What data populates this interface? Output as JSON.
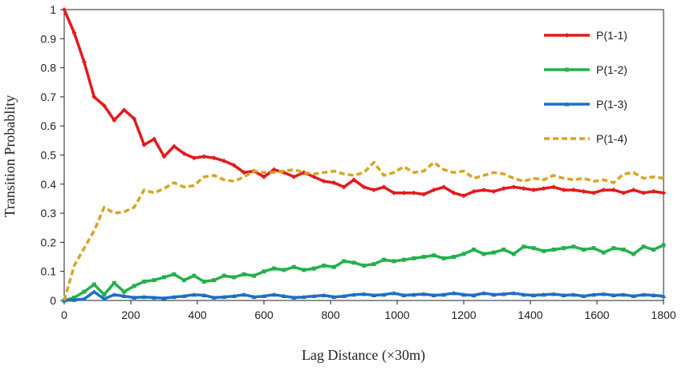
{
  "chart_data": {
    "type": "line",
    "title": "",
    "xlabel": "Lag Distance (×30m)",
    "ylabel": "Transition Probablity",
    "xlim": [
      0,
      1800
    ],
    "ylim": [
      0,
      1
    ],
    "x_ticks": [
      0,
      200,
      400,
      600,
      800,
      1000,
      1200,
      1400,
      1600,
      1800
    ],
    "y_ticks": [
      0,
      0.1,
      0.2,
      0.3,
      0.4,
      0.5,
      0.6,
      0.7,
      0.8,
      0.9,
      1
    ],
    "y_tick_labels": [
      "0",
      "0.1",
      "0.2",
      "0.3",
      "0.4",
      "0.5",
      "0.6",
      "0.7",
      "0.8",
      "0.9",
      "1"
    ],
    "grid": false,
    "legend_position": "top-right",
    "series": [
      {
        "name": "P(1-1)",
        "color": "#e31a1c",
        "style": "solid",
        "marker": "diamond",
        "x": [
          0,
          30,
          60,
          90,
          120,
          150,
          180,
          210,
          240,
          270,
          300,
          330,
          360,
          390,
          420,
          450,
          480,
          510,
          540,
          570,
          600,
          630,
          660,
          690,
          720,
          750,
          780,
          810,
          840,
          870,
          900,
          930,
          960,
          990,
          1020,
          1050,
          1080,
          1110,
          1140,
          1170,
          1200,
          1230,
          1260,
          1290,
          1320,
          1350,
          1380,
          1410,
          1440,
          1470,
          1500,
          1530,
          1560,
          1590,
          1620,
          1650,
          1680,
          1710,
          1740,
          1770,
          1800
        ],
        "y": [
          1.0,
          0.92,
          0.82,
          0.7,
          0.67,
          0.62,
          0.655,
          0.625,
          0.535,
          0.555,
          0.495,
          0.53,
          0.505,
          0.49,
          0.495,
          0.49,
          0.48,
          0.465,
          0.44,
          0.445,
          0.425,
          0.45,
          0.44,
          0.425,
          0.44,
          0.425,
          0.41,
          0.405,
          0.39,
          0.415,
          0.39,
          0.38,
          0.39,
          0.37,
          0.37,
          0.37,
          0.365,
          0.38,
          0.39,
          0.37,
          0.36,
          0.375,
          0.38,
          0.375,
          0.385,
          0.39,
          0.385,
          0.38,
          0.385,
          0.39,
          0.38,
          0.38,
          0.375,
          0.37,
          0.38,
          0.38,
          0.37,
          0.38,
          0.37,
          0.375,
          0.37
        ]
      },
      {
        "name": "P(1-2)",
        "color": "#22b14c",
        "style": "solid",
        "marker": "square",
        "x": [
          0,
          30,
          60,
          90,
          120,
          150,
          180,
          210,
          240,
          270,
          300,
          330,
          360,
          390,
          420,
          450,
          480,
          510,
          540,
          570,
          600,
          630,
          660,
          690,
          720,
          750,
          780,
          810,
          840,
          870,
          900,
          930,
          960,
          990,
          1020,
          1050,
          1080,
          1110,
          1140,
          1170,
          1200,
          1230,
          1260,
          1290,
          1320,
          1350,
          1380,
          1410,
          1440,
          1470,
          1500,
          1530,
          1560,
          1590,
          1620,
          1650,
          1680,
          1710,
          1740,
          1770,
          1800
        ],
        "y": [
          0,
          0.01,
          0.03,
          0.055,
          0.02,
          0.06,
          0.03,
          0.05,
          0.065,
          0.07,
          0.08,
          0.09,
          0.07,
          0.085,
          0.065,
          0.07,
          0.085,
          0.08,
          0.09,
          0.085,
          0.1,
          0.11,
          0.105,
          0.115,
          0.105,
          0.11,
          0.12,
          0.115,
          0.135,
          0.13,
          0.12,
          0.125,
          0.14,
          0.135,
          0.14,
          0.145,
          0.15,
          0.155,
          0.145,
          0.15,
          0.16,
          0.175,
          0.16,
          0.165,
          0.175,
          0.16,
          0.185,
          0.18,
          0.17,
          0.175,
          0.18,
          0.185,
          0.175,
          0.18,
          0.165,
          0.18,
          0.175,
          0.16,
          0.185,
          0.175,
          0.19
        ]
      },
      {
        "name": "P(1-3)",
        "color": "#1f6fc4",
        "style": "solid",
        "marker": "triangle",
        "x": [
          0,
          30,
          60,
          90,
          120,
          150,
          180,
          210,
          240,
          270,
          300,
          330,
          360,
          390,
          420,
          450,
          480,
          510,
          540,
          570,
          600,
          630,
          660,
          690,
          720,
          750,
          780,
          810,
          840,
          870,
          900,
          930,
          960,
          990,
          1020,
          1050,
          1080,
          1110,
          1140,
          1170,
          1200,
          1230,
          1260,
          1290,
          1320,
          1350,
          1380,
          1410,
          1440,
          1470,
          1500,
          1530,
          1560,
          1590,
          1620,
          1650,
          1680,
          1710,
          1740,
          1770,
          1800
        ],
        "y": [
          0,
          0.002,
          0.005,
          0.03,
          0.005,
          0.02,
          0.015,
          0.01,
          0.012,
          0.01,
          0.008,
          0.012,
          0.015,
          0.02,
          0.018,
          0.01,
          0.012,
          0.015,
          0.02,
          0.012,
          0.015,
          0.02,
          0.015,
          0.01,
          0.012,
          0.015,
          0.018,
          0.012,
          0.015,
          0.02,
          0.022,
          0.018,
          0.02,
          0.025,
          0.018,
          0.02,
          0.022,
          0.018,
          0.02,
          0.025,
          0.02,
          0.018,
          0.025,
          0.02,
          0.022,
          0.025,
          0.02,
          0.018,
          0.02,
          0.022,
          0.018,
          0.02,
          0.015,
          0.02,
          0.022,
          0.018,
          0.02,
          0.015,
          0.02,
          0.018,
          0.015
        ]
      },
      {
        "name": "P(1-4)",
        "color": "#d9a420",
        "style": "dashed",
        "marker": "none",
        "x": [
          0,
          30,
          60,
          90,
          120,
          150,
          180,
          210,
          240,
          270,
          300,
          330,
          360,
          390,
          420,
          450,
          480,
          510,
          540,
          570,
          600,
          630,
          660,
          690,
          720,
          750,
          780,
          810,
          840,
          870,
          900,
          930,
          960,
          990,
          1020,
          1050,
          1080,
          1110,
          1140,
          1170,
          1200,
          1230,
          1260,
          1290,
          1320,
          1350,
          1380,
          1410,
          1440,
          1470,
          1500,
          1530,
          1560,
          1590,
          1620,
          1650,
          1680,
          1710,
          1740,
          1770,
          1800
        ],
        "y": [
          0,
          0.12,
          0.18,
          0.24,
          0.32,
          0.3,
          0.305,
          0.32,
          0.38,
          0.37,
          0.385,
          0.405,
          0.39,
          0.395,
          0.425,
          0.43,
          0.415,
          0.41,
          0.425,
          0.445,
          0.44,
          0.44,
          0.445,
          0.45,
          0.44,
          0.435,
          0.44,
          0.445,
          0.435,
          0.43,
          0.44,
          0.475,
          0.43,
          0.44,
          0.46,
          0.44,
          0.445,
          0.475,
          0.45,
          0.44,
          0.445,
          0.42,
          0.43,
          0.44,
          0.435,
          0.42,
          0.41,
          0.42,
          0.415,
          0.43,
          0.42,
          0.415,
          0.42,
          0.41,
          0.415,
          0.405,
          0.435,
          0.44,
          0.42,
          0.425,
          0.42
        ]
      }
    ]
  }
}
